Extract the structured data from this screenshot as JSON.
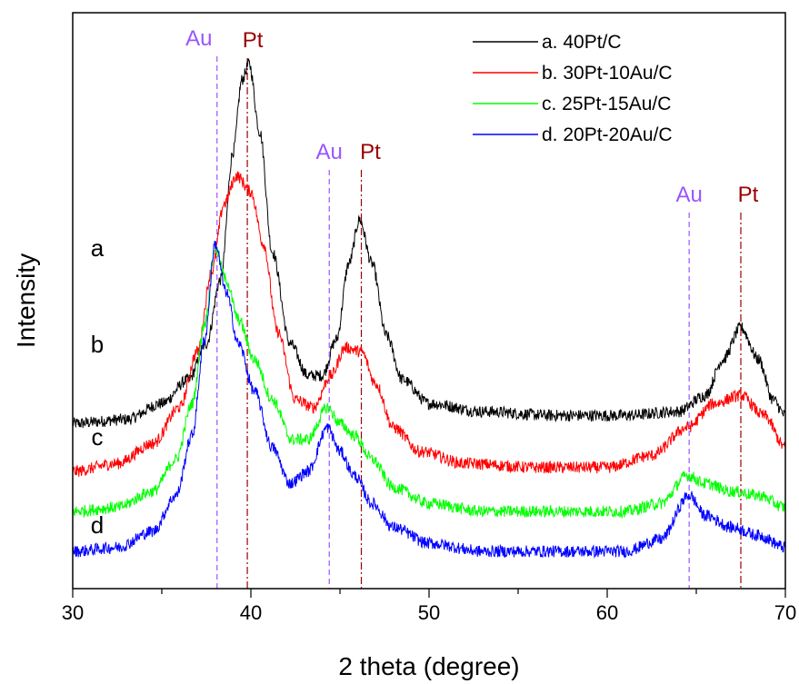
{
  "chart_data": {
    "type": "line",
    "title": "",
    "xlabel": "2 theta (degree)",
    "ylabel": "Intensity",
    "xlim": [
      30,
      70
    ],
    "xticks": [
      30,
      40,
      50,
      60,
      70
    ],
    "yticks_visible": false,
    "grid": false,
    "legend_position": "top-right",
    "series": [
      {
        "name": "a. 40Pt/C",
        "label": "a",
        "color": "#000000",
        "points": [
          [
            30,
            0.32
          ],
          [
            33,
            0.33
          ],
          [
            35,
            0.37
          ],
          [
            36.5,
            0.43
          ],
          [
            37.5,
            0.52
          ],
          [
            38.3,
            0.68
          ],
          [
            39,
            1.0
          ],
          [
            39.5,
            1.18
          ],
          [
            39.9,
            1.22
          ],
          [
            40.5,
            1.05
          ],
          [
            41.2,
            0.75
          ],
          [
            42.2,
            0.52
          ],
          [
            43.2,
            0.44
          ],
          [
            44,
            0.44
          ],
          [
            44.8,
            0.53
          ],
          [
            45.5,
            0.72
          ],
          [
            46.1,
            0.83
          ],
          [
            46.8,
            0.72
          ],
          [
            47.6,
            0.54
          ],
          [
            48.5,
            0.43
          ],
          [
            50,
            0.37
          ],
          [
            53,
            0.35
          ],
          [
            57,
            0.34
          ],
          [
            61,
            0.34
          ],
          [
            64,
            0.35
          ],
          [
            65.5,
            0.39
          ],
          [
            66.5,
            0.48
          ],
          [
            67.5,
            0.56
          ],
          [
            68.5,
            0.48
          ],
          [
            69.3,
            0.38
          ],
          [
            70,
            0.34
          ]
        ]
      },
      {
        "name": "b. 30Pt-10Au/C",
        "label": "b",
        "color": "#ff0000",
        "points": [
          [
            30,
            0.2
          ],
          [
            32.5,
            0.22
          ],
          [
            34.5,
            0.27
          ],
          [
            36,
            0.36
          ],
          [
            37,
            0.5
          ],
          [
            37.8,
            0.7
          ],
          [
            38.5,
            0.87
          ],
          [
            39.2,
            0.94
          ],
          [
            40,
            0.9
          ],
          [
            40.7,
            0.77
          ],
          [
            41.5,
            0.55
          ],
          [
            42.5,
            0.38
          ],
          [
            43.5,
            0.36
          ],
          [
            44.5,
            0.44
          ],
          [
            45.3,
            0.51
          ],
          [
            46.2,
            0.5
          ],
          [
            47,
            0.42
          ],
          [
            48,
            0.31
          ],
          [
            49.5,
            0.25
          ],
          [
            52,
            0.22
          ],
          [
            56,
            0.21
          ],
          [
            60,
            0.21
          ],
          [
            62.5,
            0.24
          ],
          [
            64.5,
            0.31
          ],
          [
            66,
            0.37
          ],
          [
            67.5,
            0.39
          ],
          [
            68.8,
            0.34
          ],
          [
            70,
            0.26
          ]
        ]
      },
      {
        "name": "c. 25Pt-15Au/C",
        "label": "c",
        "color": "#00ff00",
        "points": [
          [
            30,
            0.1
          ],
          [
            32.5,
            0.11
          ],
          [
            34.5,
            0.15
          ],
          [
            35.8,
            0.23
          ],
          [
            36.7,
            0.37
          ],
          [
            37.4,
            0.57
          ],
          [
            38,
            0.76
          ],
          [
            38.6,
            0.68
          ],
          [
            39.3,
            0.58
          ],
          [
            40.2,
            0.48
          ],
          [
            41.2,
            0.38
          ],
          [
            42.3,
            0.28
          ],
          [
            43.2,
            0.28
          ],
          [
            44.3,
            0.36
          ],
          [
            45,
            0.32
          ],
          [
            45.8,
            0.29
          ],
          [
            46.8,
            0.23
          ],
          [
            48,
            0.16
          ],
          [
            50,
            0.12
          ],
          [
            53,
            0.1
          ],
          [
            57,
            0.1
          ],
          [
            61,
            0.1
          ],
          [
            63,
            0.12
          ],
          [
            64.5,
            0.19
          ],
          [
            65.5,
            0.17
          ],
          [
            67,
            0.15
          ],
          [
            68.5,
            0.14
          ],
          [
            70,
            0.11
          ]
        ]
      },
      {
        "name": "d. 20Pt-20Au/C",
        "label": "d",
        "color": "#0000ff",
        "points": [
          [
            30,
            0.0
          ],
          [
            32.5,
            0.01
          ],
          [
            34.5,
            0.05
          ],
          [
            35.8,
            0.14
          ],
          [
            36.7,
            0.29
          ],
          [
            37.4,
            0.53
          ],
          [
            38,
            0.77
          ],
          [
            38.6,
            0.65
          ],
          [
            39.3,
            0.52
          ],
          [
            40.2,
            0.4
          ],
          [
            41.2,
            0.26
          ],
          [
            42.2,
            0.17
          ],
          [
            43.2,
            0.2
          ],
          [
            44.3,
            0.31
          ],
          [
            45,
            0.25
          ],
          [
            45.8,
            0.19
          ],
          [
            46.8,
            0.12
          ],
          [
            48,
            0.06
          ],
          [
            50,
            0.02
          ],
          [
            53,
            0.0
          ],
          [
            57,
            0.0
          ],
          [
            61,
            0.0
          ],
          [
            63,
            0.03
          ],
          [
            64.6,
            0.14
          ],
          [
            65.5,
            0.09
          ],
          [
            67,
            0.06
          ],
          [
            68.5,
            0.04
          ],
          [
            70,
            0.01
          ]
        ]
      }
    ],
    "reference_lines": [
      {
        "label": "Au",
        "x": 38.1,
        "color": "#9955ff",
        "style": "dashed"
      },
      {
        "label": "Pt",
        "x": 39.8,
        "color": "#990000",
        "style": "dash-dot"
      },
      {
        "label": "Au",
        "x": 44.4,
        "color": "#9955ff",
        "style": "dashed"
      },
      {
        "label": "Pt",
        "x": 46.2,
        "color": "#990000",
        "style": "dash-dot"
      },
      {
        "label": "Au",
        "x": 64.6,
        "color": "#9955ff",
        "style": "dashed"
      },
      {
        "label": "Pt",
        "x": 67.5,
        "color": "#990000",
        "style": "dash-dot"
      }
    ]
  }
}
